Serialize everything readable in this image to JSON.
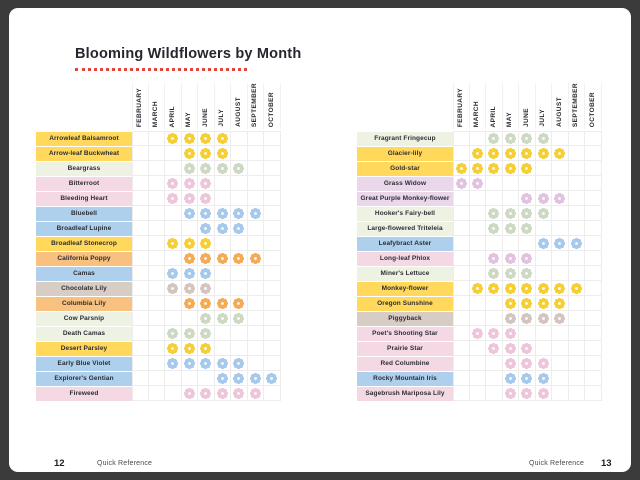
{
  "window": {
    "frame_color": "#3b3b3b",
    "page_color": "#ffffff"
  },
  "title": "Blooming Wildflowers by Month",
  "title_underline_color": "#e2463a",
  "months": [
    "FEBRUARY",
    "MARCH",
    "APRIL",
    "MAY",
    "JUNE",
    "JULY",
    "AUGUST",
    "SEPTEMBER",
    "OCTOBER"
  ],
  "palette": {
    "text": "#2c2c34",
    "grid_line": "#ededed",
    "yellow_label": "#ffd85c",
    "yellow_flower": "#f6cf35",
    "green_label": "#edf2e3",
    "green_flower": "#cdd9c3",
    "pink_label": "#f4d9e5",
    "pink_flower": "#eec6db",
    "blue_label": "#aed0ed",
    "blue_flower": "#a6c9ec",
    "orange_label": "#f8c17f",
    "orange_flower": "#f5ab55",
    "taupe_label": "#d8cdc4",
    "taupe_flower": "#d3c5bf",
    "lavender_label": "#ead7ea",
    "lavender_flower": "#e1c2df"
  },
  "pages": [
    {
      "page_number": "12",
      "footer_label": "Quick Reference",
      "rows": [
        {
          "name": "Arrowleaf Balsamroot",
          "tone": "yellow",
          "bloom": [
            "APRIL",
            "MAY",
            "JUNE",
            "JULY"
          ]
        },
        {
          "name": "Arrow-leaf Buckwheat",
          "tone": "yellow",
          "bloom": [
            "MAY",
            "JUNE",
            "JULY"
          ]
        },
        {
          "name": "Beargrass",
          "tone": "green",
          "bloom": [
            "MAY",
            "JUNE",
            "JULY",
            "AUGUST"
          ]
        },
        {
          "name": "Bitterroot",
          "tone": "pink",
          "bloom": [
            "APRIL",
            "MAY",
            "JUNE"
          ]
        },
        {
          "name": "Bleeding Heart",
          "tone": "pink",
          "bloom": [
            "APRIL",
            "MAY",
            "JUNE"
          ]
        },
        {
          "name": "Bluebell",
          "tone": "blue",
          "bloom": [
            "MAY",
            "JUNE",
            "JULY",
            "AUGUST",
            "SEPTEMBER"
          ]
        },
        {
          "name": "Broadleaf Lupine",
          "tone": "blue",
          "bloom": [
            "JUNE",
            "JULY",
            "AUGUST"
          ]
        },
        {
          "name": "Broadleaf Stonecrop",
          "tone": "yellow",
          "bloom": [
            "APRIL",
            "MAY",
            "JUNE"
          ]
        },
        {
          "name": "California Poppy",
          "tone": "orange",
          "bloom": [
            "MAY",
            "JUNE",
            "JULY",
            "AUGUST",
            "SEPTEMBER"
          ]
        },
        {
          "name": "Camas",
          "tone": "blue",
          "bloom": [
            "APRIL",
            "MAY",
            "JUNE"
          ]
        },
        {
          "name": "Chocolate Lily",
          "tone": "taupe",
          "bloom": [
            "APRIL",
            "MAY",
            "JUNE"
          ]
        },
        {
          "name": "Columbia Lily",
          "tone": "orange",
          "bloom": [
            "MAY",
            "JUNE",
            "JULY",
            "AUGUST"
          ]
        },
        {
          "name": "Cow Parsnip",
          "tone": "green",
          "bloom": [
            "JUNE",
            "JULY",
            "AUGUST"
          ]
        },
        {
          "name": "Death Camas",
          "tone": "green",
          "bloom": [
            "APRIL",
            "MAY",
            "JUNE"
          ]
        },
        {
          "name": "Desert Parsley",
          "tone": "yellow",
          "bloom": [
            "APRIL",
            "MAY",
            "JUNE"
          ]
        },
        {
          "name": "Early Blue Violet",
          "tone": "blue",
          "bloom": [
            "APRIL",
            "MAY",
            "JUNE",
            "JULY",
            "AUGUST"
          ]
        },
        {
          "name": "Explorer's Gentian",
          "tone": "blue",
          "bloom": [
            "JULY",
            "AUGUST",
            "SEPTEMBER",
            "OCTOBER"
          ]
        },
        {
          "name": "Fireweed",
          "tone": "pink",
          "bloom": [
            "MAY",
            "JUNE",
            "JULY",
            "AUGUST",
            "SEPTEMBER"
          ]
        }
      ]
    },
    {
      "page_number": "13",
      "footer_label": "Quick Reference",
      "rows": [
        {
          "name": "Fragrant Fringecup",
          "tone": "green",
          "bloom": [
            "APRIL",
            "MAY",
            "JUNE",
            "JULY"
          ]
        },
        {
          "name": "Glacier-lily",
          "tone": "yellow",
          "bloom": [
            "MARCH",
            "APRIL",
            "MAY",
            "JUNE",
            "JULY",
            "AUGUST"
          ]
        },
        {
          "name": "Gold-star",
          "tone": "yellow",
          "bloom": [
            "FEBRUARY",
            "MARCH",
            "APRIL",
            "MAY",
            "JUNE"
          ]
        },
        {
          "name": "Grass Widow",
          "tone": "lavender",
          "bloom": [
            "FEBRUARY",
            "MARCH"
          ]
        },
        {
          "name": "Great Purple Monkey-flower",
          "tone": "lavender",
          "bloom": [
            "JUNE",
            "JULY",
            "AUGUST"
          ]
        },
        {
          "name": "Hooker's Fairy-bell",
          "tone": "green",
          "bloom": [
            "APRIL",
            "MAY",
            "JUNE",
            "JULY"
          ]
        },
        {
          "name": "Large-flowered Triteleia",
          "tone": "green",
          "bloom": [
            "APRIL",
            "MAY",
            "JUNE"
          ]
        },
        {
          "name": "Leafybract Aster",
          "tone": "blue",
          "bloom": [
            "JULY",
            "AUGUST",
            "SEPTEMBER"
          ]
        },
        {
          "name": "Long-leaf Phlox",
          "tone": "pink",
          "flower_tone": "lavender",
          "bloom": [
            "APRIL",
            "MAY",
            "JUNE"
          ]
        },
        {
          "name": "Miner's Lettuce",
          "tone": "green",
          "bloom": [
            "APRIL",
            "MAY",
            "JUNE"
          ]
        },
        {
          "name": "Monkey-flower",
          "tone": "yellow",
          "bloom": [
            "MARCH",
            "APRIL",
            "MAY",
            "JUNE",
            "JULY",
            "AUGUST",
            "SEPTEMBER"
          ]
        },
        {
          "name": "Oregon Sunshine",
          "tone": "yellow",
          "bloom": [
            "MAY",
            "JUNE",
            "JULY",
            "AUGUST"
          ]
        },
        {
          "name": "Piggyback",
          "tone": "taupe",
          "bloom": [
            "MAY",
            "JUNE",
            "JULY",
            "AUGUST"
          ]
        },
        {
          "name": "Poet's Shooting Star",
          "tone": "pink",
          "bloom": [
            "MARCH",
            "APRIL",
            "MAY"
          ]
        },
        {
          "name": "Prairie Star",
          "tone": "pink",
          "bloom": [
            "APRIL",
            "MAY",
            "JUNE"
          ]
        },
        {
          "name": "Red Columbine",
          "tone": "pink",
          "bloom": [
            "MAY",
            "JUNE",
            "JULY"
          ]
        },
        {
          "name": "Rocky Mountain Iris",
          "tone": "blue",
          "bloom": [
            "MAY",
            "JUNE",
            "JULY"
          ]
        },
        {
          "name": "Sagebrush Mariposa Lily",
          "tone": "pink",
          "bloom": [
            "MAY",
            "JUNE",
            "JULY"
          ]
        }
      ]
    }
  ]
}
